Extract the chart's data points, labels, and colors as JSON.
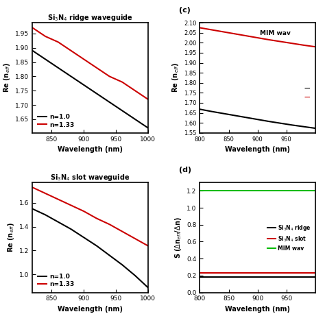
{
  "wavelength_ab": [
    820,
    840,
    860,
    880,
    900,
    920,
    940,
    960,
    980,
    1000
  ],
  "wavelength_cd": [
    800,
    820,
    840,
    860,
    880,
    900,
    920,
    940,
    960,
    980,
    1000
  ],
  "panel_a_title": "Si$_3$N$_4$ ridge waveguide",
  "panel_a_n10": [
    1.89,
    1.86,
    1.83,
    1.8,
    1.77,
    1.74,
    1.71,
    1.68,
    1.65,
    1.62
  ],
  "panel_a_n133": [
    1.97,
    1.94,
    1.92,
    1.89,
    1.86,
    1.83,
    1.8,
    1.78,
    1.75,
    1.72
  ],
  "panel_b_title": "Si$_3$N$_4$ slot waveguide",
  "panel_b_n10": [
    1.55,
    1.5,
    1.44,
    1.38,
    1.31,
    1.24,
    1.16,
    1.08,
    0.99,
    0.89
  ],
  "panel_b_n133": [
    1.73,
    1.68,
    1.63,
    1.58,
    1.53,
    1.47,
    1.42,
    1.36,
    1.3,
    1.24
  ],
  "panel_c_ylim": [
    1.55,
    2.1
  ],
  "panel_c_yticks": [
    1.55,
    1.6,
    1.65,
    1.7,
    1.75,
    1.8,
    1.85,
    1.9,
    1.95,
    2.0,
    2.05,
    2.1
  ],
  "panel_c_n10": [
    1.668,
    1.657,
    1.647,
    1.637,
    1.627,
    1.617,
    1.607,
    1.598,
    1.589,
    1.581,
    1.573
  ],
  "panel_c_n133": [
    2.075,
    2.065,
    2.055,
    2.045,
    2.035,
    2.025,
    2.015,
    2.006,
    1.997,
    1.988,
    1.98
  ],
  "panel_c_legend": "MIM wav",
  "panel_d_yticks": [
    0.0,
    0.2,
    0.4,
    0.6,
    0.8,
    1.0,
    1.2
  ],
  "panel_d_ylim": [
    0.0,
    1.3
  ],
  "panel_d_ridge": [
    0.18,
    0.18,
    0.18,
    0.18,
    0.18,
    0.18,
    0.18,
    0.18,
    0.18,
    0.18,
    0.18
  ],
  "panel_d_slot": [
    0.23,
    0.23,
    0.23,
    0.23,
    0.23,
    0.23,
    0.23,
    0.23,
    0.23,
    0.23,
    0.23
  ],
  "panel_d_mim": [
    1.2,
    1.2,
    1.2,
    1.2,
    1.2,
    1.2,
    1.2,
    1.2,
    1.2,
    1.2,
    1.2
  ],
  "xlabel": "Wavelength (nm)",
  "ylabel_ab": "Re (n$_{eff}$)",
  "ylabel_c": "Re (n$_{eff}$)",
  "ylabel_d": "S ($\\Delta$n$_{eff}$/$\\Delta$n)",
  "color_black": "#000000",
  "color_red": "#cc0000",
  "color_green": "#00bb00",
  "panel_labels_outside": [
    "(c)",
    "(d)"
  ],
  "legend_n10": "n=1.0",
  "legend_n133": "n=1.33",
  "legend_d_ridge": "Si$_3$N$_4$ ridge",
  "legend_d_slot": "Si$_3$N$_4$ slot",
  "legend_d_mim": "MIM wav"
}
